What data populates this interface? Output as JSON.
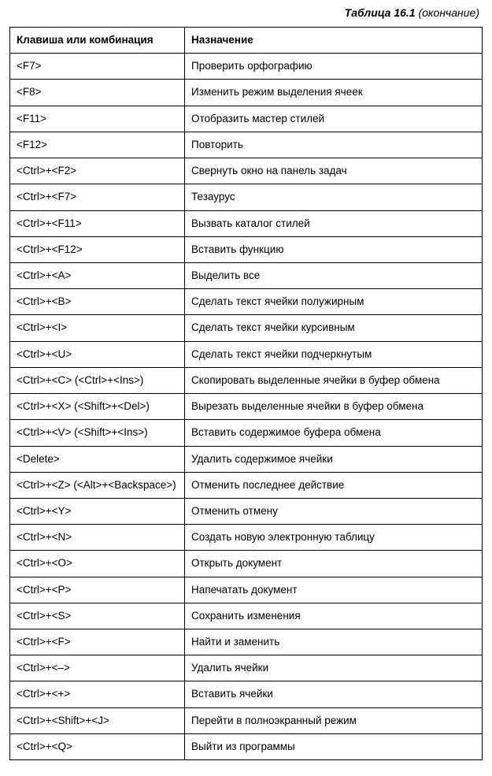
{
  "caption": {
    "title": "Таблица 16.1",
    "suffix": " (окончание)"
  },
  "table": {
    "columns": [
      "Клавиша или комбинация",
      "Назначение"
    ],
    "rows": [
      [
        "<F7>",
        "Проверить орфографию"
      ],
      [
        "<F8>",
        "Изменить режим выделения ячеек"
      ],
      [
        "<F11>",
        "Отобразить мастер стилей"
      ],
      [
        "<F12>",
        "Повторить"
      ],
      [
        "<Ctrl>+<F2>",
        "Свернуть окно на панель задач"
      ],
      [
        "<Ctrl>+<F7>",
        "Тезаурус"
      ],
      [
        "<Ctrl>+<F11>",
        "Вызвать каталог стилей"
      ],
      [
        "<Ctrl>+<F12>",
        "Вставить функцию"
      ],
      [
        "<Ctrl>+<A>",
        "Выделить все"
      ],
      [
        "<Ctrl>+<B>",
        "Сделать текст ячейки полужирным"
      ],
      [
        "<Ctrl>+<I>",
        "Сделать текст ячейки курсивным"
      ],
      [
        "<Ctrl>+<U>",
        "Сделать текст ячейки подчеркнутым"
      ],
      [
        "<Ctrl>+<C> (<Ctrl>+<Ins>)",
        "Скопировать выделенные ячейки в  буфер обмена"
      ],
      [
        "<Ctrl>+<X> (<Shift>+<Del>)",
        "Вырезать выделенные ячейки в  буфер обмена"
      ],
      [
        "<Ctrl>+<V> (<Shift>+<Ins>)",
        "Вставить содержимое буфера обмена"
      ],
      [
        "<Delete>",
        "Удалить содержимое ячейки"
      ],
      [
        "<Ctrl>+<Z> (<Alt>+<Backspace>)",
        "Отменить последнее действие"
      ],
      [
        "<Ctrl>+<Y>",
        "Отменить отмену"
      ],
      [
        "<Ctrl>+<N>",
        "Создать новую электронную таблицу"
      ],
      [
        "<Ctrl>+<O>",
        "Открыть документ"
      ],
      [
        "<Ctrl>+<P>",
        "Напечатать документ"
      ],
      [
        "<Ctrl>+<S>",
        "Сохранить изменения"
      ],
      [
        "<Ctrl>+<F>",
        "Найти и заменить"
      ],
      [
        "<Ctrl>+<–>",
        "Удалить ячейки"
      ],
      [
        "<Ctrl>+<+>",
        "Вставить ячейки"
      ],
      [
        "<Ctrl>+<Shift>+<J>",
        "Перейти в полноэкранный режим"
      ],
      [
        "<Ctrl>+<Q>",
        "Выйти из программы"
      ]
    ]
  }
}
